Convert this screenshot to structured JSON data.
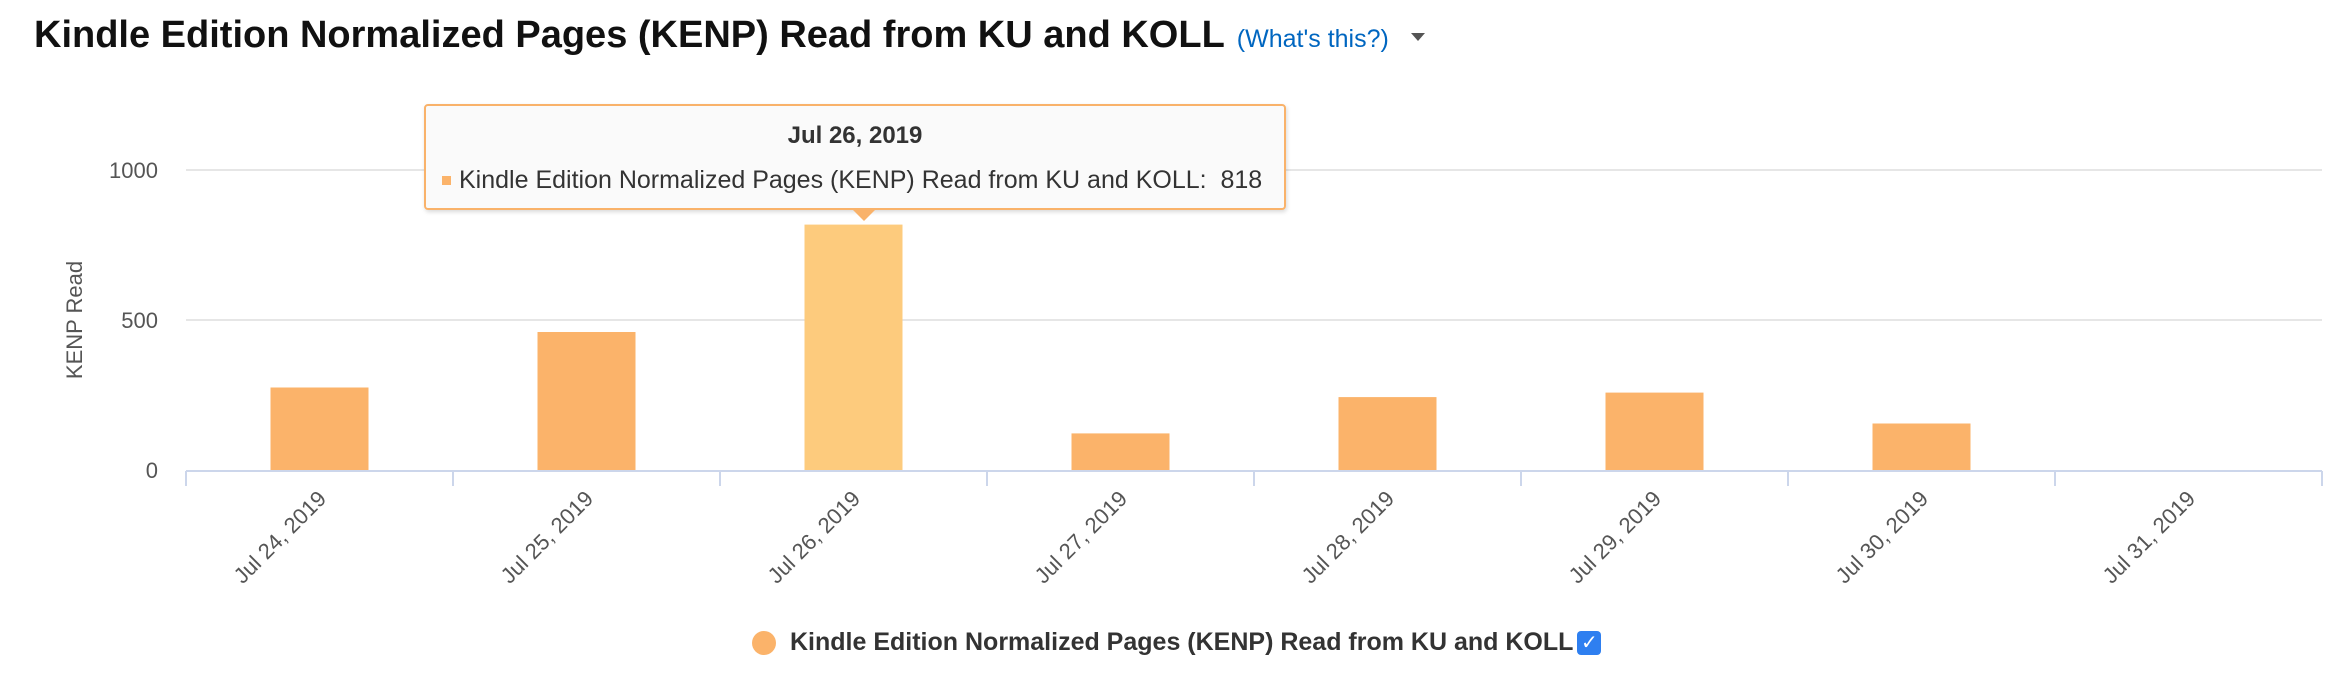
{
  "header": {
    "title": "Kindle Edition Normalized Pages (KENP) Read from KU and KOLL",
    "help_link": "(What's this?)"
  },
  "tooltip": {
    "date": "Jul 26, 2019",
    "series_label": "Kindle Edition Normalized Pages (KENP) Read from KU and KOLL:",
    "value": "818"
  },
  "legend": {
    "label": "Kindle Edition Normalized Pages (KENP) Read from KU and KOLL",
    "checked": "✓"
  },
  "colors": {
    "bar": "#fbb36a",
    "bar_highlight": "#fdcb7d",
    "gridline": "#e6e6e6",
    "axis": "#ccd6eb",
    "legend_check": "#2e7ff0"
  },
  "chart_data": {
    "type": "bar",
    "categories": [
      "Jul 24, 2019",
      "Jul 25, 2019",
      "Jul 26, 2019",
      "Jul 27, 2019",
      "Jul 28, 2019",
      "Jul 29, 2019",
      "Jul 30, 2019",
      "Jul 31, 2019"
    ],
    "series": [
      {
        "name": "Kindle Edition Normalized Pages (KENP) Read from KU and KOLL",
        "values": [
          275,
          460,
          818,
          122,
          243,
          258,
          155,
          0
        ]
      }
    ],
    "highlighted_category": "Jul 26, 2019",
    "ylabel": "KENP Read",
    "xlabel": "",
    "ylim": [
      0,
      1000
    ],
    "yticks": [
      0,
      500,
      1000
    ],
    "grid": true,
    "legend_position": "bottom-center"
  }
}
